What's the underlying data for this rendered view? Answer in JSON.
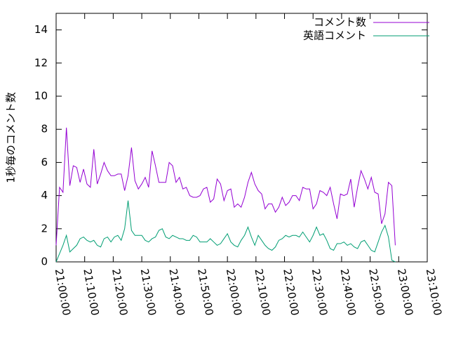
{
  "chart_data": {
    "type": "line",
    "ylabel": "1秒毎のコメント数",
    "x": [
      "21:00:00",
      "21:01:12",
      "21:02:24",
      "21:03:36",
      "21:04:48",
      "21:06:00",
      "21:07:12",
      "21:08:24",
      "21:09:36",
      "21:10:48",
      "21:12:00",
      "21:13:12",
      "21:14:24",
      "21:15:36",
      "21:16:48",
      "21:18:00",
      "21:19:12",
      "21:20:24",
      "21:21:36",
      "21:22:48",
      "21:24:00",
      "21:25:12",
      "21:26:24",
      "21:27:36",
      "21:28:48",
      "21:30:00",
      "21:31:12",
      "21:32:24",
      "21:33:36",
      "21:34:48",
      "21:36:00",
      "21:37:12",
      "21:38:24",
      "21:39:36",
      "21:40:48",
      "21:42:00",
      "21:43:12",
      "21:44:24",
      "21:45:36",
      "21:46:48",
      "21:48:00",
      "21:49:12",
      "21:50:24",
      "21:51:36",
      "21:52:48",
      "21:54:00",
      "21:55:12",
      "21:56:24",
      "21:57:36",
      "21:58:48",
      "22:00:00",
      "22:01:12",
      "22:02:24",
      "22:03:36",
      "22:04:48",
      "22:06:00",
      "22:07:12",
      "22:08:24",
      "22:09:36",
      "22:10:48",
      "22:12:00",
      "22:13:12",
      "22:14:24",
      "22:15:36",
      "22:16:48",
      "22:18:00",
      "22:19:12",
      "22:20:24",
      "22:21:36",
      "22:22:48",
      "22:24:00",
      "22:25:12",
      "22:26:24",
      "22:27:36",
      "22:28:48",
      "22:30:00",
      "22:31:12",
      "22:32:24",
      "22:33:36",
      "22:34:48",
      "22:36:00",
      "22:37:12",
      "22:38:24",
      "22:39:36",
      "22:40:48",
      "22:42:00",
      "22:43:12",
      "22:44:24",
      "22:45:36",
      "22:46:48",
      "22:48:00",
      "22:49:12",
      "22:50:24",
      "22:51:36",
      "22:52:48",
      "22:54:00",
      "22:55:12",
      "22:56:24",
      "22:57:36",
      "22:58:48"
    ],
    "series": [
      {
        "name": "コメント数",
        "color": "#9400d3",
        "values": [
          1.0,
          4.5,
          4.2,
          8.1,
          4.6,
          5.8,
          5.7,
          4.8,
          5.6,
          4.7,
          4.5,
          6.8,
          4.7,
          5.3,
          6.0,
          5.5,
          5.2,
          5.2,
          5.3,
          5.3,
          4.3,
          5.2,
          6.9,
          4.9,
          4.4,
          4.7,
          5.1,
          4.5,
          6.7,
          5.8,
          4.8,
          4.8,
          4.8,
          6.0,
          5.8,
          4.8,
          5.1,
          4.4,
          4.5,
          4.0,
          3.9,
          3.9,
          4.0,
          4.4,
          4.5,
          3.6,
          3.8,
          5.0,
          4.7,
          3.7,
          4.3,
          4.4,
          3.3,
          3.5,
          3.3,
          3.9,
          4.8,
          5.4,
          4.7,
          4.3,
          4.1,
          3.2,
          3.5,
          3.5,
          3.0,
          3.3,
          3.9,
          3.4,
          3.6,
          4.0,
          4.0,
          3.7,
          4.5,
          4.4,
          4.4,
          3.2,
          3.5,
          4.3,
          4.2,
          4.0,
          4.5,
          3.5,
          2.6,
          4.1,
          4.0,
          4.1,
          5.0,
          3.3,
          4.5,
          5.5,
          5.0,
          4.4,
          5.1,
          4.2,
          4.1,
          2.3,
          2.9,
          4.8,
          4.6,
          1.0
        ]
      },
      {
        "name": "英語コメント",
        "color": "#009e73",
        "values": [
          0.0,
          0.5,
          1.0,
          1.6,
          0.6,
          0.8,
          1.0,
          1.4,
          1.5,
          1.3,
          1.2,
          1.3,
          1.0,
          0.9,
          1.4,
          1.5,
          1.2,
          1.5,
          1.6,
          1.3,
          2.0,
          3.7,
          1.9,
          1.6,
          1.6,
          1.6,
          1.3,
          1.2,
          1.4,
          1.5,
          1.9,
          2.0,
          1.5,
          1.4,
          1.6,
          1.5,
          1.4,
          1.4,
          1.3,
          1.3,
          1.6,
          1.5,
          1.2,
          1.2,
          1.2,
          1.4,
          1.2,
          1.0,
          1.1,
          1.4,
          1.7,
          1.2,
          1.0,
          0.9,
          1.3,
          1.6,
          2.1,
          1.5,
          1.0,
          1.6,
          1.3,
          1.0,
          0.8,
          0.7,
          0.9,
          1.3,
          1.4,
          1.6,
          1.5,
          1.6,
          1.6,
          1.5,
          1.8,
          1.5,
          1.2,
          1.6,
          2.1,
          1.6,
          1.7,
          1.3,
          0.8,
          0.7,
          1.1,
          1.1,
          1.2,
          1.0,
          1.1,
          0.9,
          0.8,
          1.2,
          1.3,
          1.0,
          0.7,
          0.6,
          1.2,
          1.8,
          2.2,
          1.5,
          0.1,
          0.0
        ]
      }
    ],
    "xlim": [
      "21:00:00",
      "23:10:00"
    ],
    "xticks": [
      "21:00:00",
      "21:10:00",
      "21:20:00",
      "21:30:00",
      "21:40:00",
      "21:50:00",
      "22:00:00",
      "22:10:00",
      "22:20:00",
      "22:30:00",
      "22:40:00",
      "22:50:00",
      "23:00:00",
      "23:10:00"
    ],
    "ylim": [
      0,
      15
    ],
    "yticks": [
      0,
      2,
      4,
      6,
      8,
      10,
      12,
      14
    ],
    "grid": false,
    "legend": "top-right"
  }
}
